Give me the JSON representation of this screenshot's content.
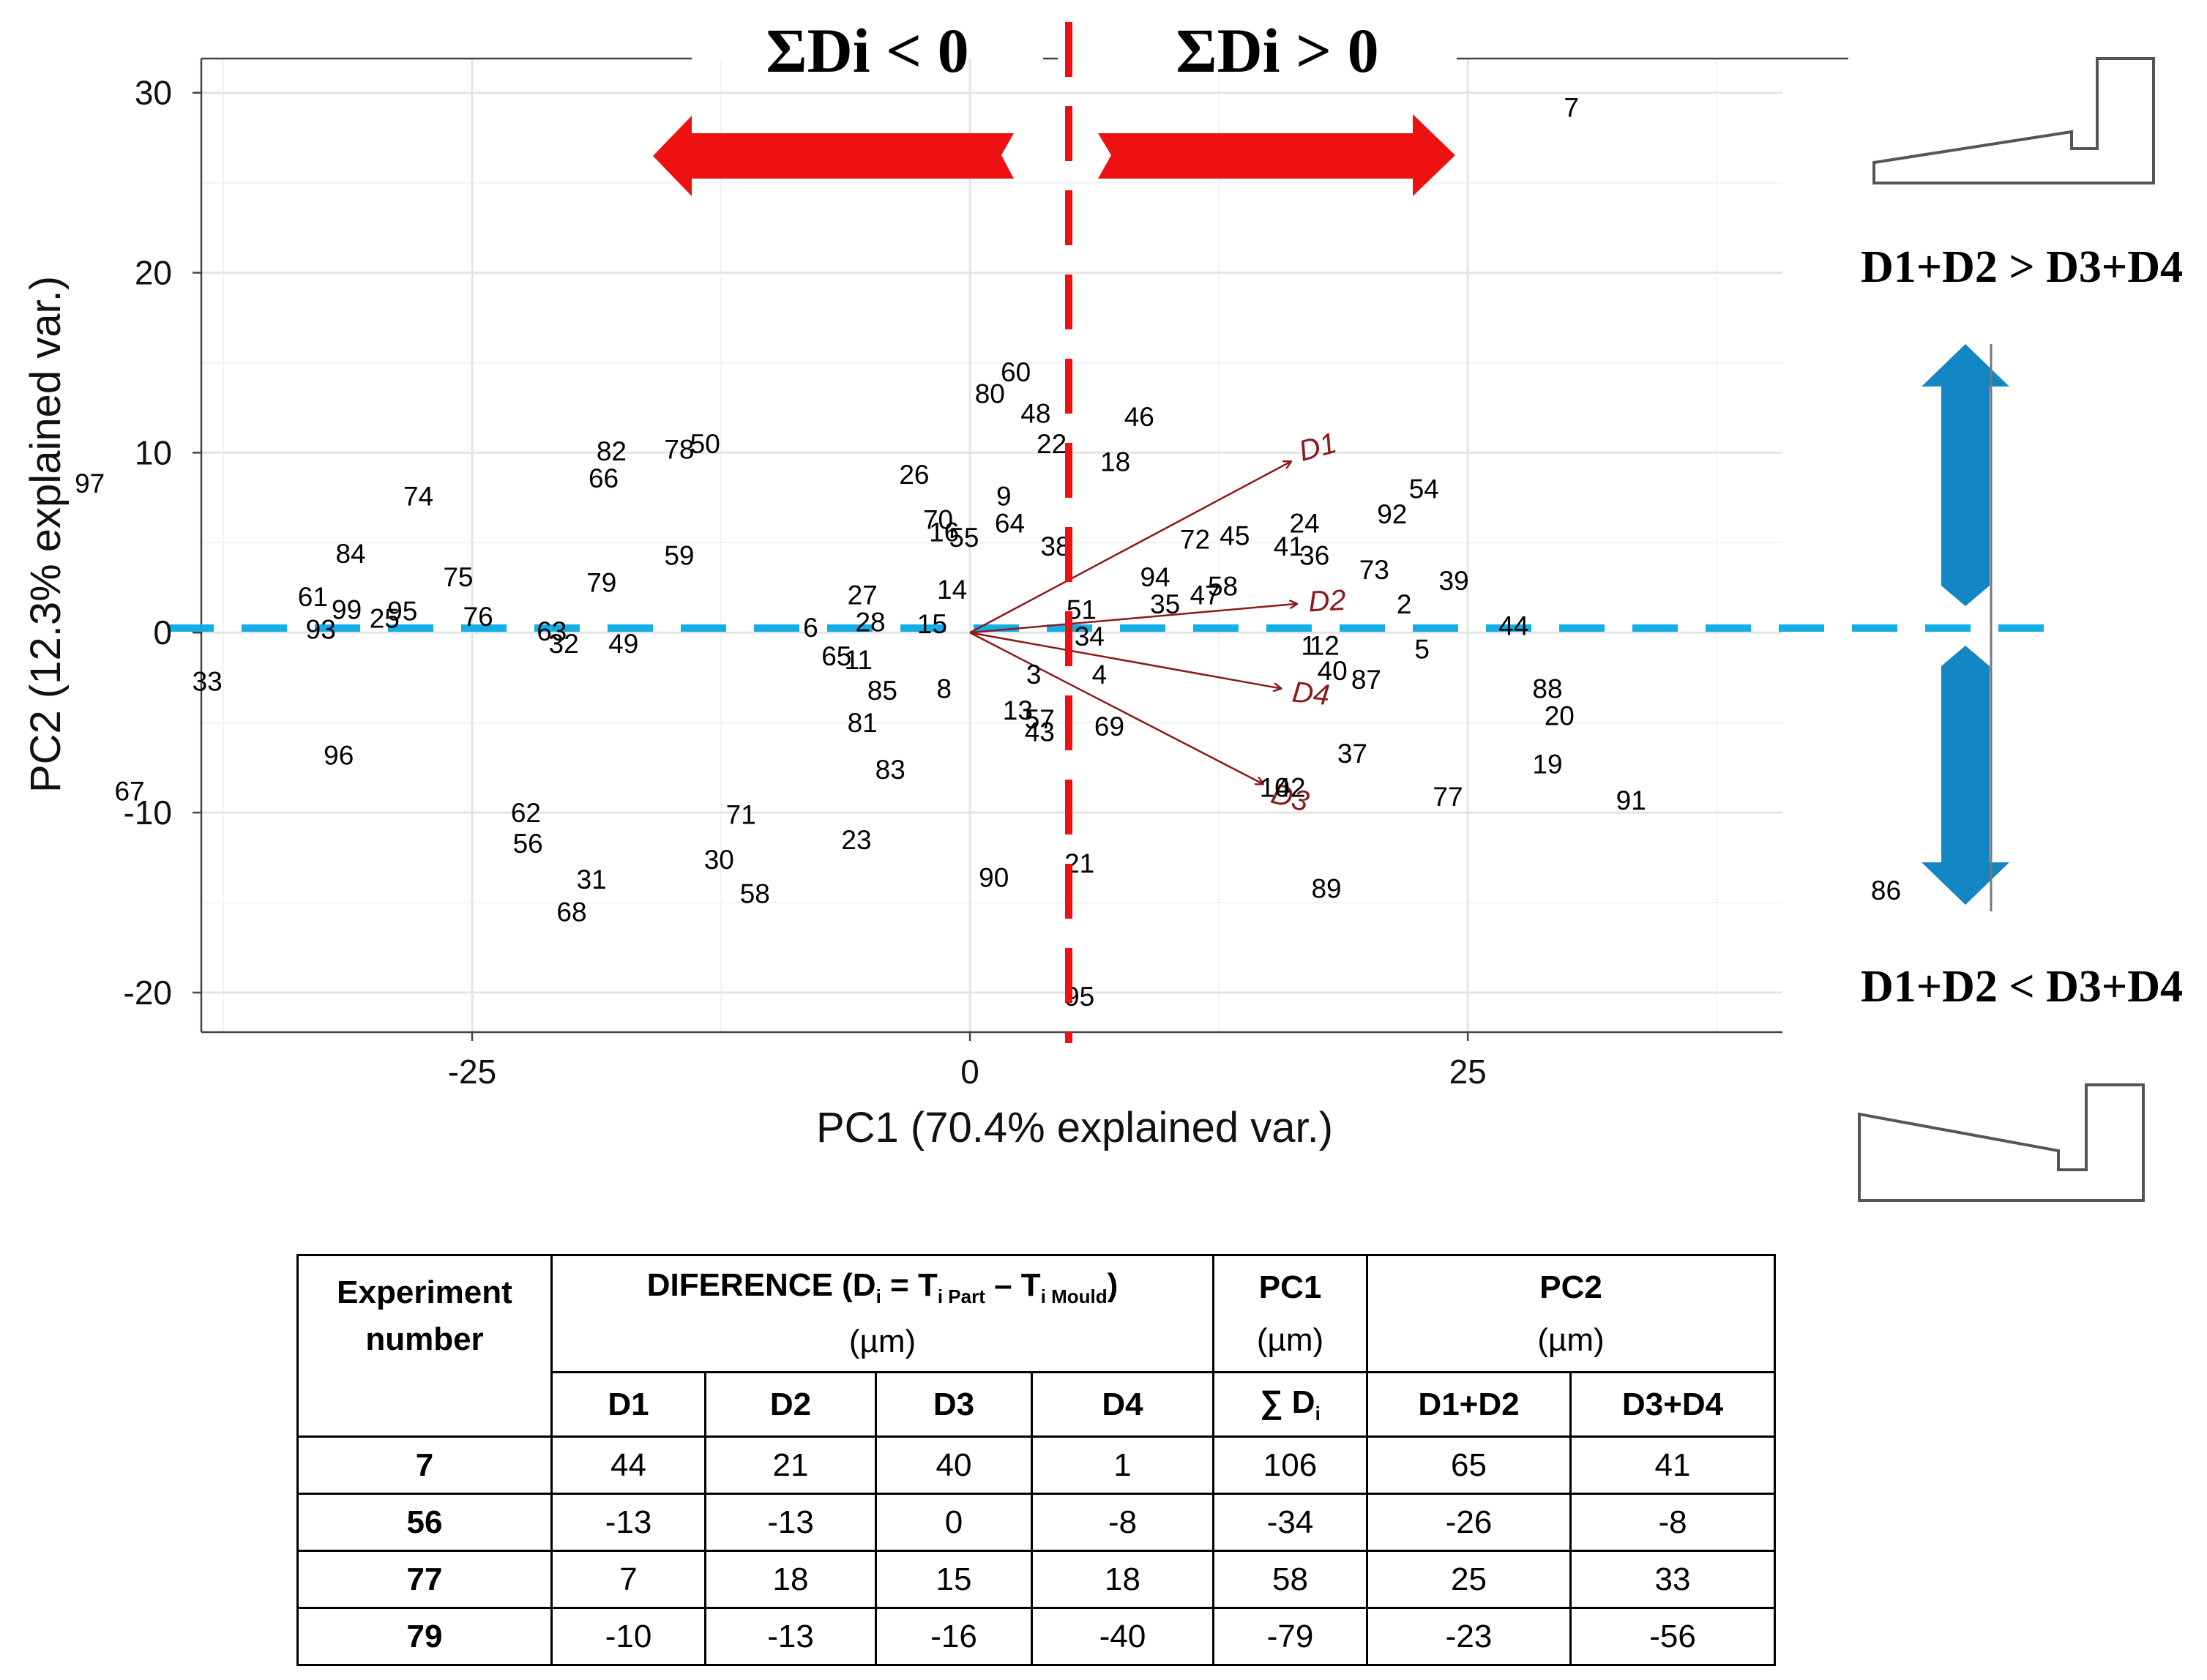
{
  "chart_data": {
    "type": "scatter",
    "title": "",
    "xlabel": "PC1 (70.4% explained var.)",
    "ylabel": "PC2 (12.3% explained var.)",
    "xlim": [
      -38.6,
      40.8
    ],
    "ylim": [
      -22.2,
      31.9
    ],
    "x_ticks": [
      -25,
      0,
      25
    ],
    "y_ticks": [
      -20,
      -10,
      0,
      10,
      20,
      30
    ],
    "x_tick_labels": [
      "-25",
      "0",
      "25"
    ],
    "y_tick_labels": [
      "-20",
      "-10",
      "0",
      "10",
      "20",
      "30"
    ],
    "grid": true,
    "points": [
      {
        "label": "7",
        "x": 30.2,
        "y": 29.2
      },
      {
        "label": "60",
        "x": 2.3,
        "y": 14.5
      },
      {
        "label": "80",
        "x": 1.0,
        "y": 13.3
      },
      {
        "label": "48",
        "x": 3.3,
        "y": 12.2
      },
      {
        "label": "46",
        "x": 8.5,
        "y": 12.0
      },
      {
        "label": "22",
        "x": 4.1,
        "y": 10.5
      },
      {
        "label": "18",
        "x": 7.3,
        "y": 9.5
      },
      {
        "label": "26",
        "x": -2.8,
        "y": 8.8
      },
      {
        "label": "9",
        "x": 1.7,
        "y": 7.6
      },
      {
        "label": "70",
        "x": -1.6,
        "y": 6.3
      },
      {
        "label": "64",
        "x": 2.0,
        "y": 6.1
      },
      {
        "label": "16",
        "x": -1.3,
        "y": 5.6
      },
      {
        "label": "55",
        "x": -0.3,
        "y": 5.3
      },
      {
        "label": "38",
        "x": 4.3,
        "y": 4.8
      },
      {
        "label": "72",
        "x": 11.3,
        "y": 5.2
      },
      {
        "label": "45",
        "x": 13.3,
        "y": 5.4
      },
      {
        "label": "24",
        "x": 16.8,
        "y": 6.1
      },
      {
        "label": "92",
        "x": 21.2,
        "y": 6.6
      },
      {
        "label": "54",
        "x": 22.8,
        "y": 8.0
      },
      {
        "label": "41",
        "x": 16.0,
        "y": 4.8
      },
      {
        "label": "36",
        "x": 17.3,
        "y": 4.3
      },
      {
        "label": "73",
        "x": 20.3,
        "y": 3.5
      },
      {
        "label": "39",
        "x": 24.3,
        "y": 2.9
      },
      {
        "label": "94",
        "x": 9.3,
        "y": 3.1
      },
      {
        "label": "35",
        "x": 9.8,
        "y": 1.6
      },
      {
        "label": "47",
        "x": 11.8,
        "y": 2.1
      },
      {
        "label": "58",
        "x": 12.7,
        "y": 2.6
      },
      {
        "label": "2",
        "x": 21.8,
        "y": 1.6
      },
      {
        "label": "14",
        "x": -0.9,
        "y": 2.4
      },
      {
        "label": "51",
        "x": 5.6,
        "y": 1.3
      },
      {
        "label": "27",
        "x": -5.4,
        "y": 2.1
      },
      {
        "label": "28",
        "x": -5.0,
        "y": 0.6
      },
      {
        "label": "15",
        "x": -1.9,
        "y": 0.5
      },
      {
        "label": "6",
        "x": -8.0,
        "y": 0.3
      },
      {
        "label": "34",
        "x": 6.0,
        "y": -0.2
      },
      {
        "label": "44",
        "x": 27.3,
        "y": 0.4
      },
      {
        "label": "1",
        "x": 17.0,
        "y": -0.7
      },
      {
        "label": "12",
        "x": 17.8,
        "y": -0.7
      },
      {
        "label": "5",
        "x": 22.7,
        "y": -0.9
      },
      {
        "label": "65",
        "x": -6.7,
        "y": -1.3
      },
      {
        "label": "11",
        "x": -5.6,
        "y": -1.5
      },
      {
        "label": "3",
        "x": 3.2,
        "y": -2.3
      },
      {
        "label": "4",
        "x": 6.5,
        "y": -2.3
      },
      {
        "label": "40",
        "x": 18.2,
        "y": -2.1
      },
      {
        "label": "87",
        "x": 19.9,
        "y": -2.6
      },
      {
        "label": "85",
        "x": -4.4,
        "y": -3.2
      },
      {
        "label": "8",
        "x": -1.3,
        "y": -3.1
      },
      {
        "label": "88",
        "x": 29.0,
        "y": -3.1
      },
      {
        "label": "13",
        "x": 2.4,
        "y": -4.3
      },
      {
        "label": "57",
        "x": 3.5,
        "y": -4.8
      },
      {
        "label": "43",
        "x": 3.5,
        "y": -5.5
      },
      {
        "label": "69",
        "x": 7.0,
        "y": -5.2
      },
      {
        "label": "20",
        "x": 29.6,
        "y": -4.6
      },
      {
        "label": "81",
        "x": -5.4,
        "y": -5.0
      },
      {
        "label": "37",
        "x": 19.2,
        "y": -6.7
      },
      {
        "label": "83",
        "x": -4.0,
        "y": -7.6
      },
      {
        "label": "19",
        "x": 29.0,
        "y": -7.3
      },
      {
        "label": "10",
        "x": 15.3,
        "y": -8.6
      },
      {
        "label": "42",
        "x": 16.1,
        "y": -8.6
      },
      {
        "label": "77",
        "x": 24.0,
        "y": -9.1
      },
      {
        "label": "91",
        "x": 33.2,
        "y": -9.3
      },
      {
        "label": "71",
        "x": -11.5,
        "y": -10.1
      },
      {
        "label": "23",
        "x": -5.7,
        "y": -11.5
      },
      {
        "label": "30",
        "x": -12.6,
        "y": -12.6
      },
      {
        "label": "90",
        "x": 1.2,
        "y": -13.6
      },
      {
        "label": "21",
        "x": 5.5,
        "y": -12.8
      },
      {
        "label": "58",
        "x": -10.8,
        "y": -14.5
      },
      {
        "label": "89",
        "x": 17.9,
        "y": -14.2
      },
      {
        "label": "86",
        "x": 46.0,
        "y": -14.3
      },
      {
        "label": "95",
        "x": 5.5,
        "y": -20.2
      },
      {
        "label": "97",
        "x": -44.2,
        "y": 8.3
      },
      {
        "label": "74",
        "x": -27.7,
        "y": 7.6
      },
      {
        "label": "82",
        "x": -18.0,
        "y": 10.1
      },
      {
        "label": "66",
        "x": -18.4,
        "y": 8.6
      },
      {
        "label": "78",
        "x": -14.6,
        "y": 10.2
      },
      {
        "label": "50",
        "x": -13.3,
        "y": 10.5
      },
      {
        "label": "84",
        "x": -31.1,
        "y": 4.4
      },
      {
        "label": "59",
        "x": -14.6,
        "y": 4.3
      },
      {
        "label": "75",
        "x": -25.7,
        "y": 3.1
      },
      {
        "label": "79",
        "x": -18.5,
        "y": 2.8
      },
      {
        "label": "61",
        "x": -33.0,
        "y": 2.0
      },
      {
        "label": "99",
        "x": -31.3,
        "y": 1.3
      },
      {
        "label": "25",
        "x": -29.4,
        "y": 0.8
      },
      {
        "label": "95",
        "x": -28.5,
        "y": 1.2
      },
      {
        "label": "76",
        "x": -24.7,
        "y": 0.9
      },
      {
        "label": "93",
        "x": -32.6,
        "y": 0.2
      },
      {
        "label": "63",
        "x": -21.0,
        "y": 0.1
      },
      {
        "label": "32",
        "x": -20.4,
        "y": -0.6
      },
      {
        "label": "49",
        "x": -17.4,
        "y": -0.6
      },
      {
        "label": "33",
        "x": -38.3,
        "y": -2.7
      },
      {
        "label": "96",
        "x": -31.7,
        "y": -6.8
      },
      {
        "label": "67",
        "x": -42.2,
        "y": -8.8
      },
      {
        "label": "62",
        "x": -22.3,
        "y": -10.0
      },
      {
        "label": "56",
        "x": -22.2,
        "y": -11.7
      },
      {
        "label": "31",
        "x": -19.0,
        "y": -13.7
      },
      {
        "label": "68",
        "x": -20.0,
        "y": -15.5
      }
    ],
    "loadings": [
      {
        "name": "D1",
        "x": 16.1,
        "y": 9.5
      },
      {
        "name": "D2",
        "x": 16.4,
        "y": 1.6
      },
      {
        "name": "D4",
        "x": 15.6,
        "y": -3.1
      },
      {
        "name": "D3",
        "x": 14.7,
        "y": -8.4
      }
    ],
    "annotations": {
      "sum_negative": "ΣDi < 0",
      "sum_positive": "ΣDi > 0",
      "upper_condition": "D1+D2 > D3+D4",
      "lower_condition": "D1+D2 < D3+D4"
    },
    "colors": {
      "points": "#000000",
      "loadings": "#8b1a1a",
      "red_arrow": "#ee1111",
      "blue_arrow": "#1386c4",
      "h_dashed": "#12aee6",
      "v_dashed": "#ee1111"
    }
  },
  "table": {
    "header": {
      "experiment_line1": "Experiment",
      "experiment_line2": "number",
      "difference_pre": "DIFERENCE  (D",
      "difference_sub1": "i",
      "difference_mid1": " = T",
      "difference_sub2": "i Part",
      "difference_mid2": " – T",
      "difference_sub3": "i Mould",
      "difference_post": ")",
      "difference_unit": "(µm)",
      "pc1": "PC1",
      "pc1_unit": "(µm)",
      "pc2": "PC2",
      "pc2_unit": "(µm)",
      "d1": "D1",
      "d2": "D2",
      "d3": "D3",
      "d4": "D4",
      "sum_pre": "∑ D",
      "sum_sub": "i",
      "d1d2": "D1+D2",
      "d3d4": "D3+D4"
    },
    "rows": [
      {
        "exp": "7",
        "d1": "44",
        "d2": "21",
        "d3": "40",
        "d4": "1",
        "sum": "106",
        "d1d2": "65",
        "d3d4": "41"
      },
      {
        "exp": "56",
        "d1": "-13",
        "d2": "-13",
        "d3": "0",
        "d4": "-8",
        "sum": "-34",
        "d1d2": "-26",
        "d3d4": "-8"
      },
      {
        "exp": "77",
        "d1": "7",
        "d2": "18",
        "d3": "15",
        "d4": "18",
        "sum": "58",
        "d1d2": "25",
        "d3d4": "33"
      },
      {
        "exp": "79",
        "d1": "-10",
        "d2": "-13",
        "d3": "-16",
        "d4": "-40",
        "sum": "-79",
        "d1d2": "-23",
        "d3d4": "-56"
      }
    ]
  }
}
